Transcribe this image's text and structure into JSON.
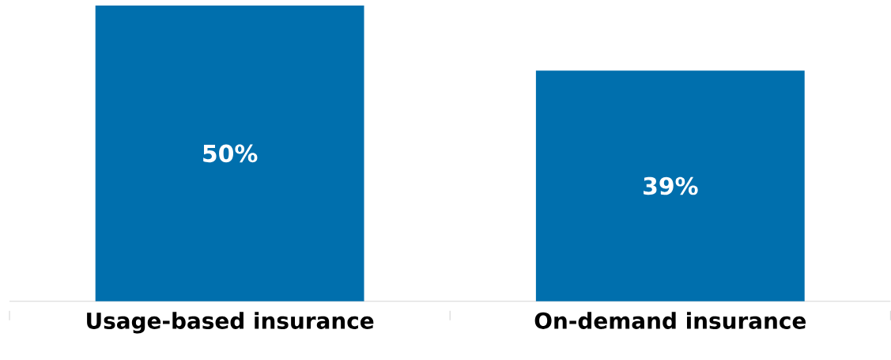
{
  "chart_data": {
    "type": "bar",
    "categories": [
      "Usage-based insurance",
      "On-demand insurance"
    ],
    "values": [
      50,
      39
    ],
    "color": "#006fad",
    "value_labels": [
      "50%",
      "39%"
    ]
  }
}
